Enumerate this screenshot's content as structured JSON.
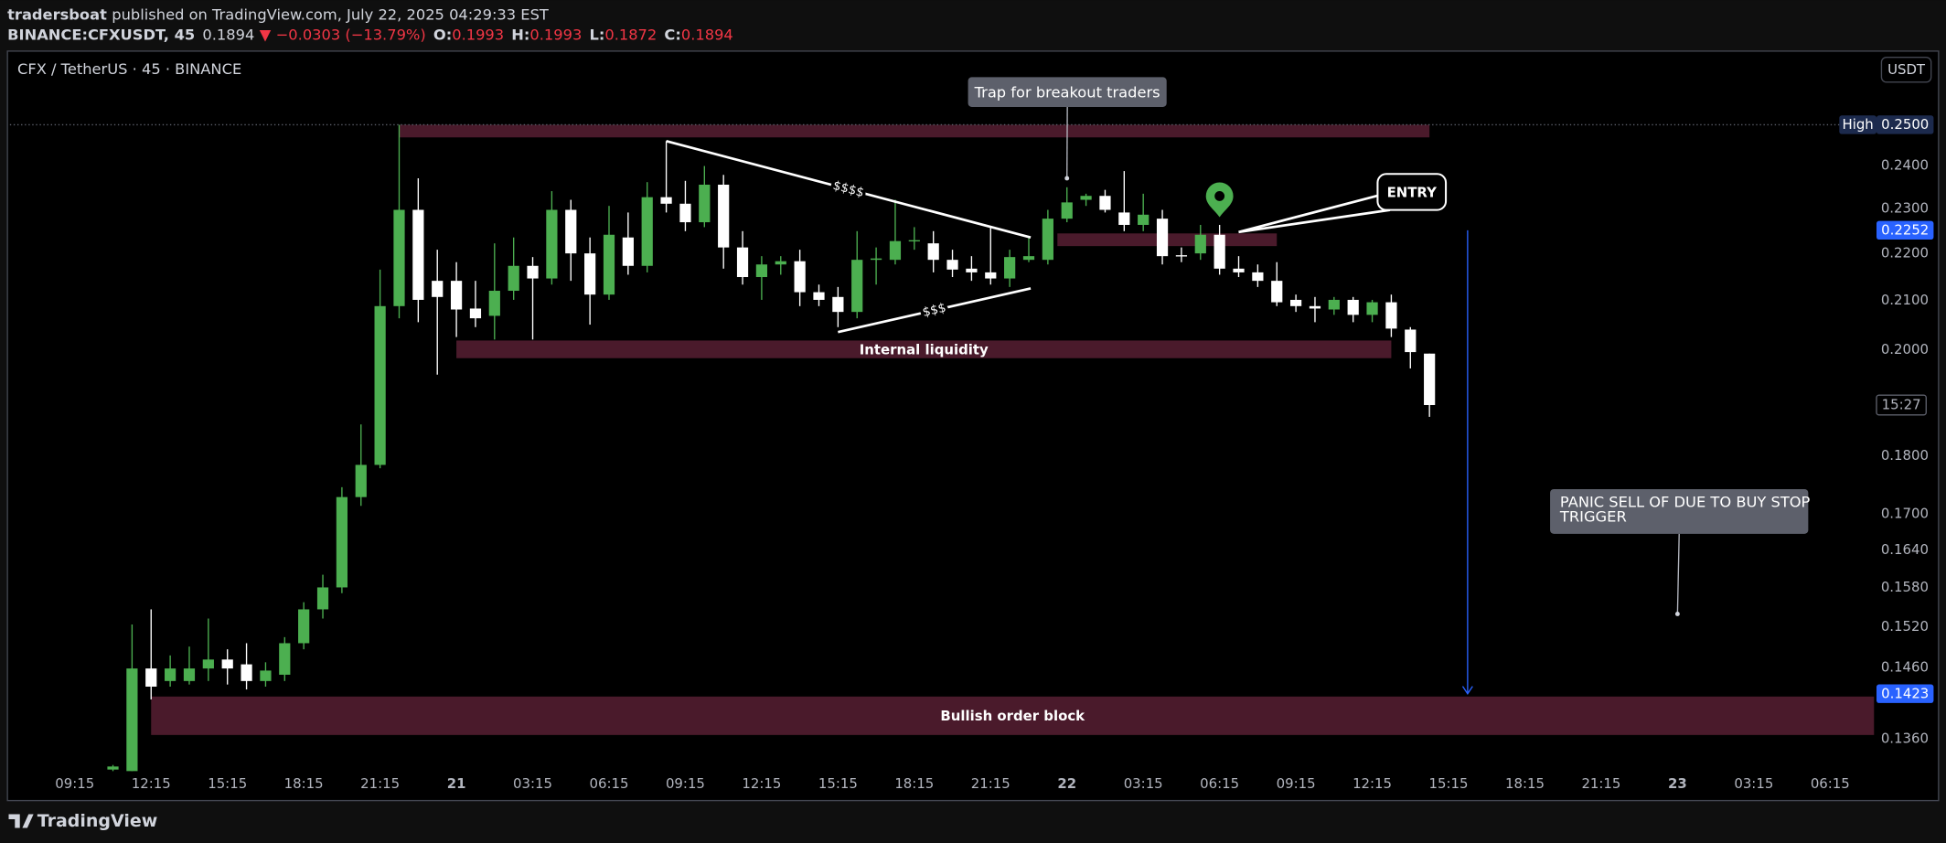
{
  "header": {
    "author": "tradersboat",
    "published": "published on TradingView.com, July 22, 2025 04:29:33 EST",
    "symbol": "BINANCE:CFXUSDT, 45",
    "last": "0.1894",
    "arrow": "▼",
    "change": "−0.0303 (−13.79%)",
    "ohlc": [
      {
        "label": "O:",
        "value": "0.1993"
      },
      {
        "label": "H:",
        "value": "0.1993"
      },
      {
        "label": "L:",
        "value": "0.1872"
      },
      {
        "label": "C:",
        "value": "0.1894"
      }
    ]
  },
  "footer": {
    "brand": "TradingView"
  },
  "chart_data": {
    "type": "candlestick",
    "legend": "CFX / TetherUS · 45 · BINANCE",
    "currency": "USDT",
    "log_scale": true,
    "grid": false,
    "up_color": "#4caf50",
    "down_color": "#ffffff",
    "zone_color": "#4a1a2b",
    "x": [
      2,
      3,
      4,
      5,
      6,
      7,
      8,
      9,
      10,
      11,
      12,
      13,
      14,
      15,
      16,
      17,
      18,
      19,
      20,
      21,
      22,
      23,
      24,
      25,
      26,
      27,
      28,
      29,
      30,
      31,
      32,
      33,
      34,
      35,
      36,
      37,
      38,
      39,
      40,
      41,
      42,
      43,
      44,
      45,
      46,
      47,
      48,
      49,
      50,
      51,
      52,
      53,
      54,
      55,
      56,
      57,
      58,
      59,
      60,
      61,
      62,
      63,
      64,
      65,
      66,
      67,
      68,
      69,
      70,
      71
    ],
    "open": [
      0.132,
      0.1318,
      0.1459,
      0.1441,
      0.1441,
      0.1459,
      0.1472,
      0.1465,
      0.1441,
      0.145,
      0.1496,
      0.1547,
      0.1581,
      0.1729,
      0.1785,
      0.2089,
      0.2298,
      0.2142,
      0.2142,
      0.2084,
      0.2069,
      0.2121,
      0.2174,
      0.2147,
      0.2298,
      0.2201,
      0.2113,
      0.2236,
      0.2174,
      0.2327,
      0.2312,
      0.227,
      0.2356,
      0.2214,
      0.215,
      0.2177,
      0.2184,
      0.2118,
      0.2108,
      0.2077,
      0.2187,
      0.2187,
      0.2228,
      0.2223,
      0.2187,
      0.2168,
      0.216,
      0.2147,
      0.2187,
      0.2187,
      0.2278,
      0.2321,
      0.233,
      0.2292,
      0.2264,
      0.2278,
      0.2197,
      0.2201,
      0.2242,
      0.2168,
      0.216,
      0.2142,
      0.2102,
      0.2089,
      0.2082,
      0.2102,
      0.2071,
      0.2097,
      0.2041,
      0.1993
    ],
    "high": [
      0.1326,
      0.1524,
      0.1547,
      0.1478,
      0.1491,
      0.1533,
      0.1487,
      0.1496,
      0.1468,
      0.1505,
      0.1558,
      0.1601,
      0.1746,
      0.1858,
      0.2166,
      0.25,
      0.2371,
      0.2209,
      0.2182,
      0.2142,
      0.2223,
      0.2236,
      0.2193,
      0.2341,
      0.2321,
      0.2236,
      0.2307,
      0.2292,
      0.2362,
      0.246,
      0.2365,
      0.24,
      0.2379,
      0.225,
      0.2195,
      0.2195,
      0.2209,
      0.2134,
      0.2129,
      0.225,
      0.2214,
      0.2321,
      0.2259,
      0.225,
      0.2209,
      0.2195,
      0.2259,
      0.2209,
      0.2236,
      0.2298,
      0.235,
      0.2335,
      0.2344,
      0.2388,
      0.2335,
      0.2298,
      0.2214,
      0.2264,
      0.2264,
      0.2195,
      0.2177,
      0.2182,
      0.2113,
      0.2108,
      0.2108,
      0.2108,
      0.2102,
      0.2113,
      0.2046,
      0.1993
    ],
    "low": [
      0.1318,
      0.1318,
      0.1415,
      0.1433,
      0.1436,
      0.1441,
      0.1436,
      0.1429,
      0.1433,
      0.1441,
      0.1487,
      0.1533,
      0.1572,
      0.1714,
      0.1779,
      0.2064,
      0.2056,
      0.1952,
      0.2026,
      0.2046,
      0.2021,
      0.2102,
      0.2021,
      0.2134,
      0.2142,
      0.2051,
      0.2102,
      0.2155,
      0.216,
      0.2292,
      0.225,
      0.2259,
      0.2168,
      0.2134,
      0.2102,
      0.2155,
      0.2089,
      0.2089,
      0.2046,
      0.2064,
      0.2134,
      0.2177,
      0.2209,
      0.216,
      0.215,
      0.2142,
      0.2134,
      0.2129,
      0.2182,
      0.2177,
      0.227,
      0.2307,
      0.2292,
      0.225,
      0.225,
      0.2177,
      0.2182,
      0.2187,
      0.2155,
      0.215,
      0.2129,
      0.2089,
      0.2077,
      0.2056,
      0.2071,
      0.2056,
      0.2056,
      0.2026,
      0.1964,
      0.1872
    ],
    "close": [
      0.1324,
      0.1459,
      0.1433,
      0.1459,
      0.1459,
      0.1472,
      0.1459,
      0.1441,
      0.1456,
      0.1496,
      0.1547,
      0.1581,
      0.1729,
      0.1785,
      0.2089,
      0.2298,
      0.2102,
      0.2108,
      0.2082,
      0.2064,
      0.2121,
      0.2174,
      0.2147,
      0.2298,
      0.2201,
      0.2113,
      0.2242,
      0.2174,
      0.2327,
      0.2312,
      0.227,
      0.2356,
      0.2214,
      0.215,
      0.2177,
      0.2184,
      0.2118,
      0.2102,
      0.2077,
      0.2187,
      0.219,
      0.2228,
      0.223,
      0.2187,
      0.2166,
      0.216,
      0.2147,
      0.2193,
      0.2195,
      0.2278,
      0.2315,
      0.233,
      0.2298,
      0.2264,
      0.2287,
      0.2195,
      0.2195,
      0.2242,
      0.2168,
      0.216,
      0.2142,
      0.2097,
      0.2089,
      0.2084,
      0.2102,
      0.2071,
      0.2097,
      0.2043,
      0.1996,
      0.1894
    ],
    "xlim": [
      -3.4,
      94.3
    ],
    "ylim": [
      0.132,
      0.2686
    ],
    "xticks": [
      {
        "value": 0,
        "label": "09:15"
      },
      {
        "value": 4,
        "label": "12:15"
      },
      {
        "value": 8,
        "label": "15:15"
      },
      {
        "value": 12,
        "label": "18:15"
      },
      {
        "value": 16,
        "label": "21:15"
      },
      {
        "value": 20,
        "label": "21"
      },
      {
        "value": 24,
        "label": "03:15"
      },
      {
        "value": 28,
        "label": "06:15"
      },
      {
        "value": 32,
        "label": "09:15"
      },
      {
        "value": 36,
        "label": "12:15"
      },
      {
        "value": 40,
        "label": "15:15"
      },
      {
        "value": 44,
        "label": "18:15"
      },
      {
        "value": 48,
        "label": "21:15"
      },
      {
        "value": 52,
        "label": "22"
      },
      {
        "value": 56,
        "label": "03:15"
      },
      {
        "value": 60,
        "label": "06:15"
      },
      {
        "value": 64,
        "label": "09:15"
      },
      {
        "value": 68,
        "label": "12:15"
      },
      {
        "value": 72,
        "label": "15:15"
      },
      {
        "value": 76,
        "label": "18:15"
      },
      {
        "value": 80,
        "label": "21:15"
      },
      {
        "value": 84,
        "label": "23"
      },
      {
        "value": 88,
        "label": "03:15"
      },
      {
        "value": 92,
        "label": "06:15"
      }
    ],
    "yticks": [
      {
        "value": 0.24,
        "label": "0.2400"
      },
      {
        "value": 0.23,
        "label": "0.2300"
      },
      {
        "value": 0.22,
        "label": "0.2200"
      },
      {
        "value": 0.21,
        "label": "0.2100"
      },
      {
        "value": 0.2,
        "label": "0.2000"
      },
      {
        "value": 0.18,
        "label": "0.1800"
      },
      {
        "value": 0.17,
        "label": "0.1700"
      },
      {
        "value": 0.164,
        "label": "0.1640"
      },
      {
        "value": 0.158,
        "label": "0.1580"
      },
      {
        "value": 0.152,
        "label": "0.1520"
      },
      {
        "value": 0.146,
        "label": "0.1460"
      },
      {
        "value": 0.136,
        "label": "0.1360"
      }
    ],
    "high_marker": {
      "label": "High",
      "value": 0.25,
      "value_label": "0.2500"
    },
    "projection": {
      "x": 73,
      "from": 0.2252,
      "to": 0.1423,
      "from_label": "0.2252",
      "to_label": "0.1423",
      "color": "#2962ff"
    },
    "countdown": "15:27",
    "zones": [
      {
        "x": [
          17,
          71
        ],
        "high": 0.25,
        "low": 0.2469
      },
      {
        "x": [
          20,
          69
        ],
        "high": 0.2019,
        "low": 0.1984,
        "label": "Internal liquidity"
      },
      {
        "x": [
          51.5,
          63
        ],
        "high": 0.2245,
        "low": 0.2217
      },
      {
        "x": [
          4,
          94.3
        ],
        "high": 0.1419,
        "low": 0.1366,
        "label": "Bullish order block"
      }
    ],
    "trendlines": [
      {
        "label": "$$$$",
        "points": [
          {
            "x": 31,
            "price": 0.246
          },
          {
            "x": 50.1,
            "price": 0.2236
          }
        ]
      },
      {
        "label": "$$$",
        "points": [
          {
            "x": 40,
            "price": 0.2036
          },
          {
            "x": 50.1,
            "price": 0.2126
          }
        ]
      }
    ],
    "callouts": [
      {
        "lines": [
          "Trap for breakout traders"
        ],
        "x": 52,
        "price": 0.2371
      },
      {
        "lines": [
          "ENTRY"
        ],
        "x": 61,
        "price": 0.2248
      },
      {
        "lines": [
          "PANIC SELL OF DUE TO BUY STOP",
          "TRIGGER"
        ],
        "x": 84,
        "price": 0.154
      }
    ],
    "pin": {
      "x": 60,
      "price": 0.2321,
      "color": "#4caf50"
    }
  }
}
